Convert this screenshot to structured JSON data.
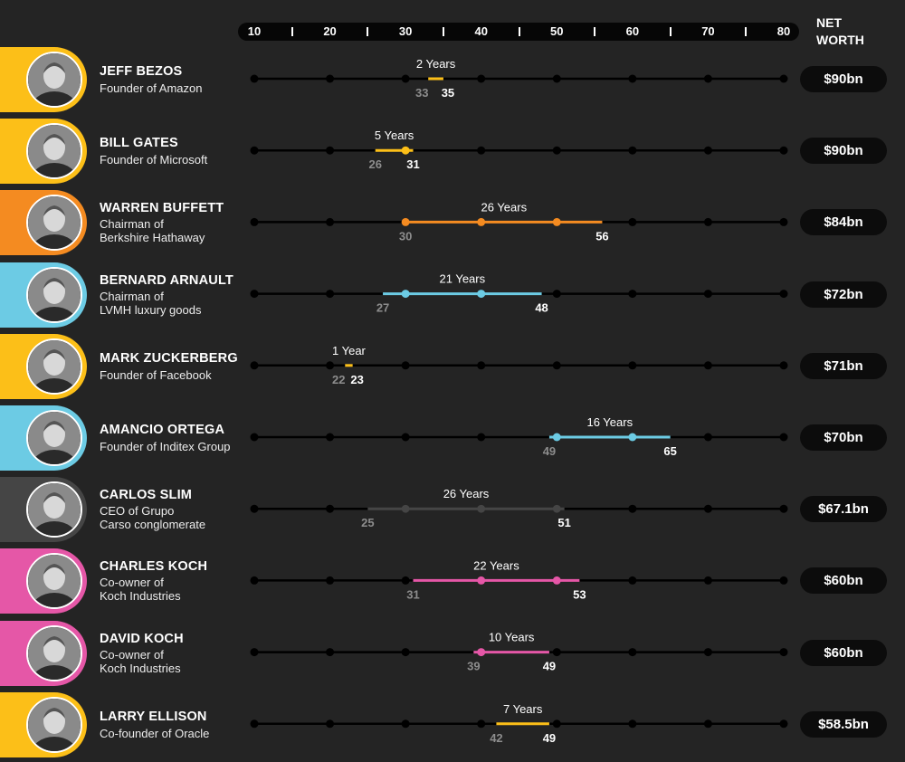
{
  "axis": {
    "ticks": [
      10,
      20,
      30,
      40,
      50,
      60,
      70,
      80
    ],
    "range": [
      10,
      80
    ]
  },
  "header": {
    "net_worth_line1": "NET",
    "net_worth_line2": "WORTH"
  },
  "colors": {
    "yellow": "#fcbf18",
    "orange": "#f48b21",
    "light_blue": "#6ccbe4",
    "grey": "#454545",
    "pink": "#e557a7"
  },
  "people": [
    {
      "name": "JEFF BEZOS",
      "role": [
        "Founder of Amazon"
      ],
      "net_worth": "$90bn",
      "color": "yellow"
    },
    {
      "name": "BILL GATES",
      "role": [
        "Founder of Microsoft"
      ],
      "net_worth": "$90bn",
      "color": "yellow"
    },
    {
      "name": "WARREN BUFFETT",
      "role": [
        "Chairman of",
        "Berkshire Hathaway"
      ],
      "net_worth": "$84bn",
      "color": "orange"
    },
    {
      "name": "BERNARD ARNAULT",
      "role": [
        "Chairman of",
        "LVMH luxury goods"
      ],
      "net_worth": "$72bn",
      "color": "light_blue"
    },
    {
      "name": "MARK ZUCKERBERG",
      "role": [
        "Founder of Facebook"
      ],
      "net_worth": "$71bn",
      "color": "yellow"
    },
    {
      "name": "AMANCIO ORTEGA",
      "role": [
        "Founder of Inditex Group"
      ],
      "net_worth": "$70bn",
      "color": "light_blue"
    },
    {
      "name": "CARLOS SLIM",
      "role": [
        "CEO of Grupo",
        "Carso conglomerate"
      ],
      "net_worth": "$67.1bn",
      "color": "grey"
    },
    {
      "name": "CHARLES KOCH",
      "role": [
        "Co-owner of",
        "Koch Industries"
      ],
      "net_worth": "$60bn",
      "color": "pink"
    },
    {
      "name": "DAVID KOCH",
      "role": [
        "Co-owner of",
        "Koch Industries"
      ],
      "net_worth": "$60bn",
      "color": "pink"
    },
    {
      "name": "LARRY ELLISON",
      "role": [
        "Co-founder of Oracle"
      ],
      "net_worth": "$58.5bn",
      "color": "yellow"
    }
  ],
  "chart_data": {
    "type": "range",
    "x_axis_ticks": [
      10,
      20,
      30,
      40,
      50,
      60,
      70,
      80
    ],
    "xlim": [
      10,
      80
    ],
    "series": [
      {
        "category": "JEFF BEZOS",
        "start": 33,
        "end": 35,
        "duration_label": "2 Years"
      },
      {
        "category": "BILL GATES",
        "start": 26,
        "end": 31,
        "duration_label": "5 Years"
      },
      {
        "category": "WARREN BUFFETT",
        "start": 30,
        "end": 56,
        "duration_label": "26 Years"
      },
      {
        "category": "BERNARD ARNAULT",
        "start": 27,
        "end": 48,
        "duration_label": "21 Years"
      },
      {
        "category": "MARK ZUCKERBERG",
        "start": 22,
        "end": 23,
        "duration_label": "1 Year"
      },
      {
        "category": "AMANCIO ORTEGA",
        "start": 49,
        "end": 65,
        "duration_label": "16 Years"
      },
      {
        "category": "CARLOS SLIM",
        "start": 25,
        "end": 51,
        "duration_label": "26 Years"
      },
      {
        "category": "CHARLES KOCH",
        "start": 31,
        "end": 53,
        "duration_label": "22 Years"
      },
      {
        "category": "DAVID KOCH",
        "start": 39,
        "end": 49,
        "duration_label": "10 Years"
      },
      {
        "category": "LARRY ELLISON",
        "start": 42,
        "end": 49,
        "duration_label": "7 Years"
      }
    ]
  }
}
